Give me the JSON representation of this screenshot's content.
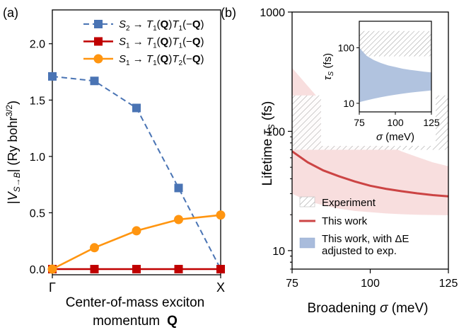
{
  "colors": {
    "blue": "#4a74b4",
    "red": "#c00000",
    "orange": "#ff9510",
    "red_line": "#cc4444",
    "pink_band": "#f4c8c8",
    "blue_band": "#a9bcdc",
    "hatch": "#9a9a9a",
    "axis": "#000000"
  },
  "chart_data": [
    {
      "id": "a",
      "panel_label": "(a)",
      "type": "line",
      "xlabel_line1": "Center-of-mass exciton",
      "xlabel_line2_text": "momentum",
      "xlabel_line2_symbol": "Q",
      "ylabel": "|V_{S→B}|  (Ry bohr^{3/2})",
      "ylabel_parts": {
        "bar_open": "|",
        "V": "V",
        "sub": "S→B",
        "bar_close": "|",
        "unit": "(Ry bohr",
        "unit_sup": "3/2",
        "unit_end": ")"
      },
      "xlim": [
        0,
        4
      ],
      "ylim": [
        -0.05,
        2.3
      ],
      "x_tick_labels": [
        {
          "x": 0,
          "label": "Γ"
        },
        {
          "x": 4,
          "label": "X"
        }
      ],
      "y_ticks": [
        0.0,
        0.5,
        1.0,
        1.5,
        2.0
      ],
      "y_tick_labels": [
        "0.0",
        "0.5",
        "1.0",
        "1.5",
        "2.0"
      ],
      "legend_position": "top-right",
      "series": [
        {
          "key": "s2",
          "legend": {
            "lhs": "S",
            "lhs_sub": "2",
            "arrow": "→",
            "rhs": "T_1(Q)T_1(−Q)"
          },
          "color_key": "blue",
          "dashed": true,
          "marker": "square",
          "x": [
            0,
            1,
            2,
            3,
            4
          ],
          "y": [
            1.71,
            1.67,
            1.43,
            0.72,
            0.0
          ]
        },
        {
          "key": "s1t1",
          "legend": {
            "lhs": "S",
            "lhs_sub": "1",
            "arrow": "→",
            "rhs": "T_1(Q)T_1(−Q)"
          },
          "color_key": "red",
          "dashed": false,
          "marker": "square",
          "x": [
            0,
            1,
            2,
            3,
            4
          ],
          "y": [
            0.0,
            0.0,
            0.0,
            0.0,
            0.0
          ]
        },
        {
          "key": "s1t2",
          "legend": {
            "lhs": "S",
            "lhs_sub": "1",
            "arrow": "→",
            "rhs": "T_1(Q)T_2(−Q)"
          },
          "color_key": "orange",
          "dashed": false,
          "marker": "circle",
          "x": [
            0,
            1,
            2,
            3,
            4
          ],
          "y": [
            0.0,
            0.19,
            0.34,
            0.44,
            0.48
          ]
        }
      ]
    },
    {
      "id": "b",
      "panel_label": "(b)",
      "type": "area",
      "xlabel": "Broadening σ (meV)",
      "xlabel_parts": {
        "text": "Broadening ",
        "sym": "σ",
        "unit": " (meV)"
      },
      "ylabel_parts": {
        "text": "Lifetime ",
        "sym": "τ",
        "sub": "S",
        "unit": " (fs)"
      },
      "y_scale": "log",
      "xlim": [
        75,
        125
      ],
      "ylim": [
        7,
        1000
      ],
      "x_ticks": [
        75,
        100,
        125
      ],
      "x_tick_labels": [
        "75",
        "100",
        "125"
      ],
      "y_ticks": [
        10,
        100,
        1000
      ],
      "y_tick_labels": [
        "10",
        "100",
        "1000"
      ],
      "experiment": {
        "range": [
          70,
          200
        ],
        "legend": "Experiment"
      },
      "this_work": {
        "legend": "This work",
        "x": [
          75,
          80,
          85,
          90,
          95,
          100,
          105,
          110,
          115,
          120,
          125
        ],
        "y": [
          68,
          55,
          47,
          42,
          38,
          35,
          33,
          31.5,
          30.2,
          29.2,
          28.5
        ],
        "band_lower": [
          30,
          26,
          24,
          22.5,
          21.5,
          21,
          20.5,
          20.2,
          20,
          19.9,
          19.8
        ],
        "band_upper": [
          340,
          240,
          170,
          135,
          110,
          92,
          78,
          68,
          61,
          55,
          51
        ]
      },
      "adjusted": {
        "legend_line1": "This work, with ΔE",
        "legend_line2": "adjusted to exp."
      },
      "inset": {
        "xlim": [
          75,
          125
        ],
        "ylim": [
          7,
          300
        ],
        "y_scale": "log",
        "xlabel_parts": {
          "sym": "σ",
          "unit": " (meV)"
        },
        "ylabel_parts": {
          "sym": "τ",
          "sub": "S",
          "unit": " (fs)"
        },
        "x_ticks": [
          75,
          100,
          125
        ],
        "x_tick_labels": [
          "75",
          "100",
          "125"
        ],
        "y_ticks": [
          10,
          100
        ],
        "y_tick_labels": [
          "10",
          "100"
        ],
        "experiment_range": [
          70,
          200
        ],
        "band_x": [
          75,
          80,
          85,
          90,
          95,
          100,
          105,
          110,
          115,
          120,
          125
        ],
        "band_upper": [
          100,
          72,
          60,
          53,
          48,
          45,
          42,
          40,
          38.5,
          37,
          36
        ],
        "band_lower": [
          10.5,
          11.3,
          12.1,
          12.9,
          13.6,
          14.3,
          14.9,
          15.5,
          16.0,
          16.5,
          17.0
        ]
      }
    }
  ]
}
